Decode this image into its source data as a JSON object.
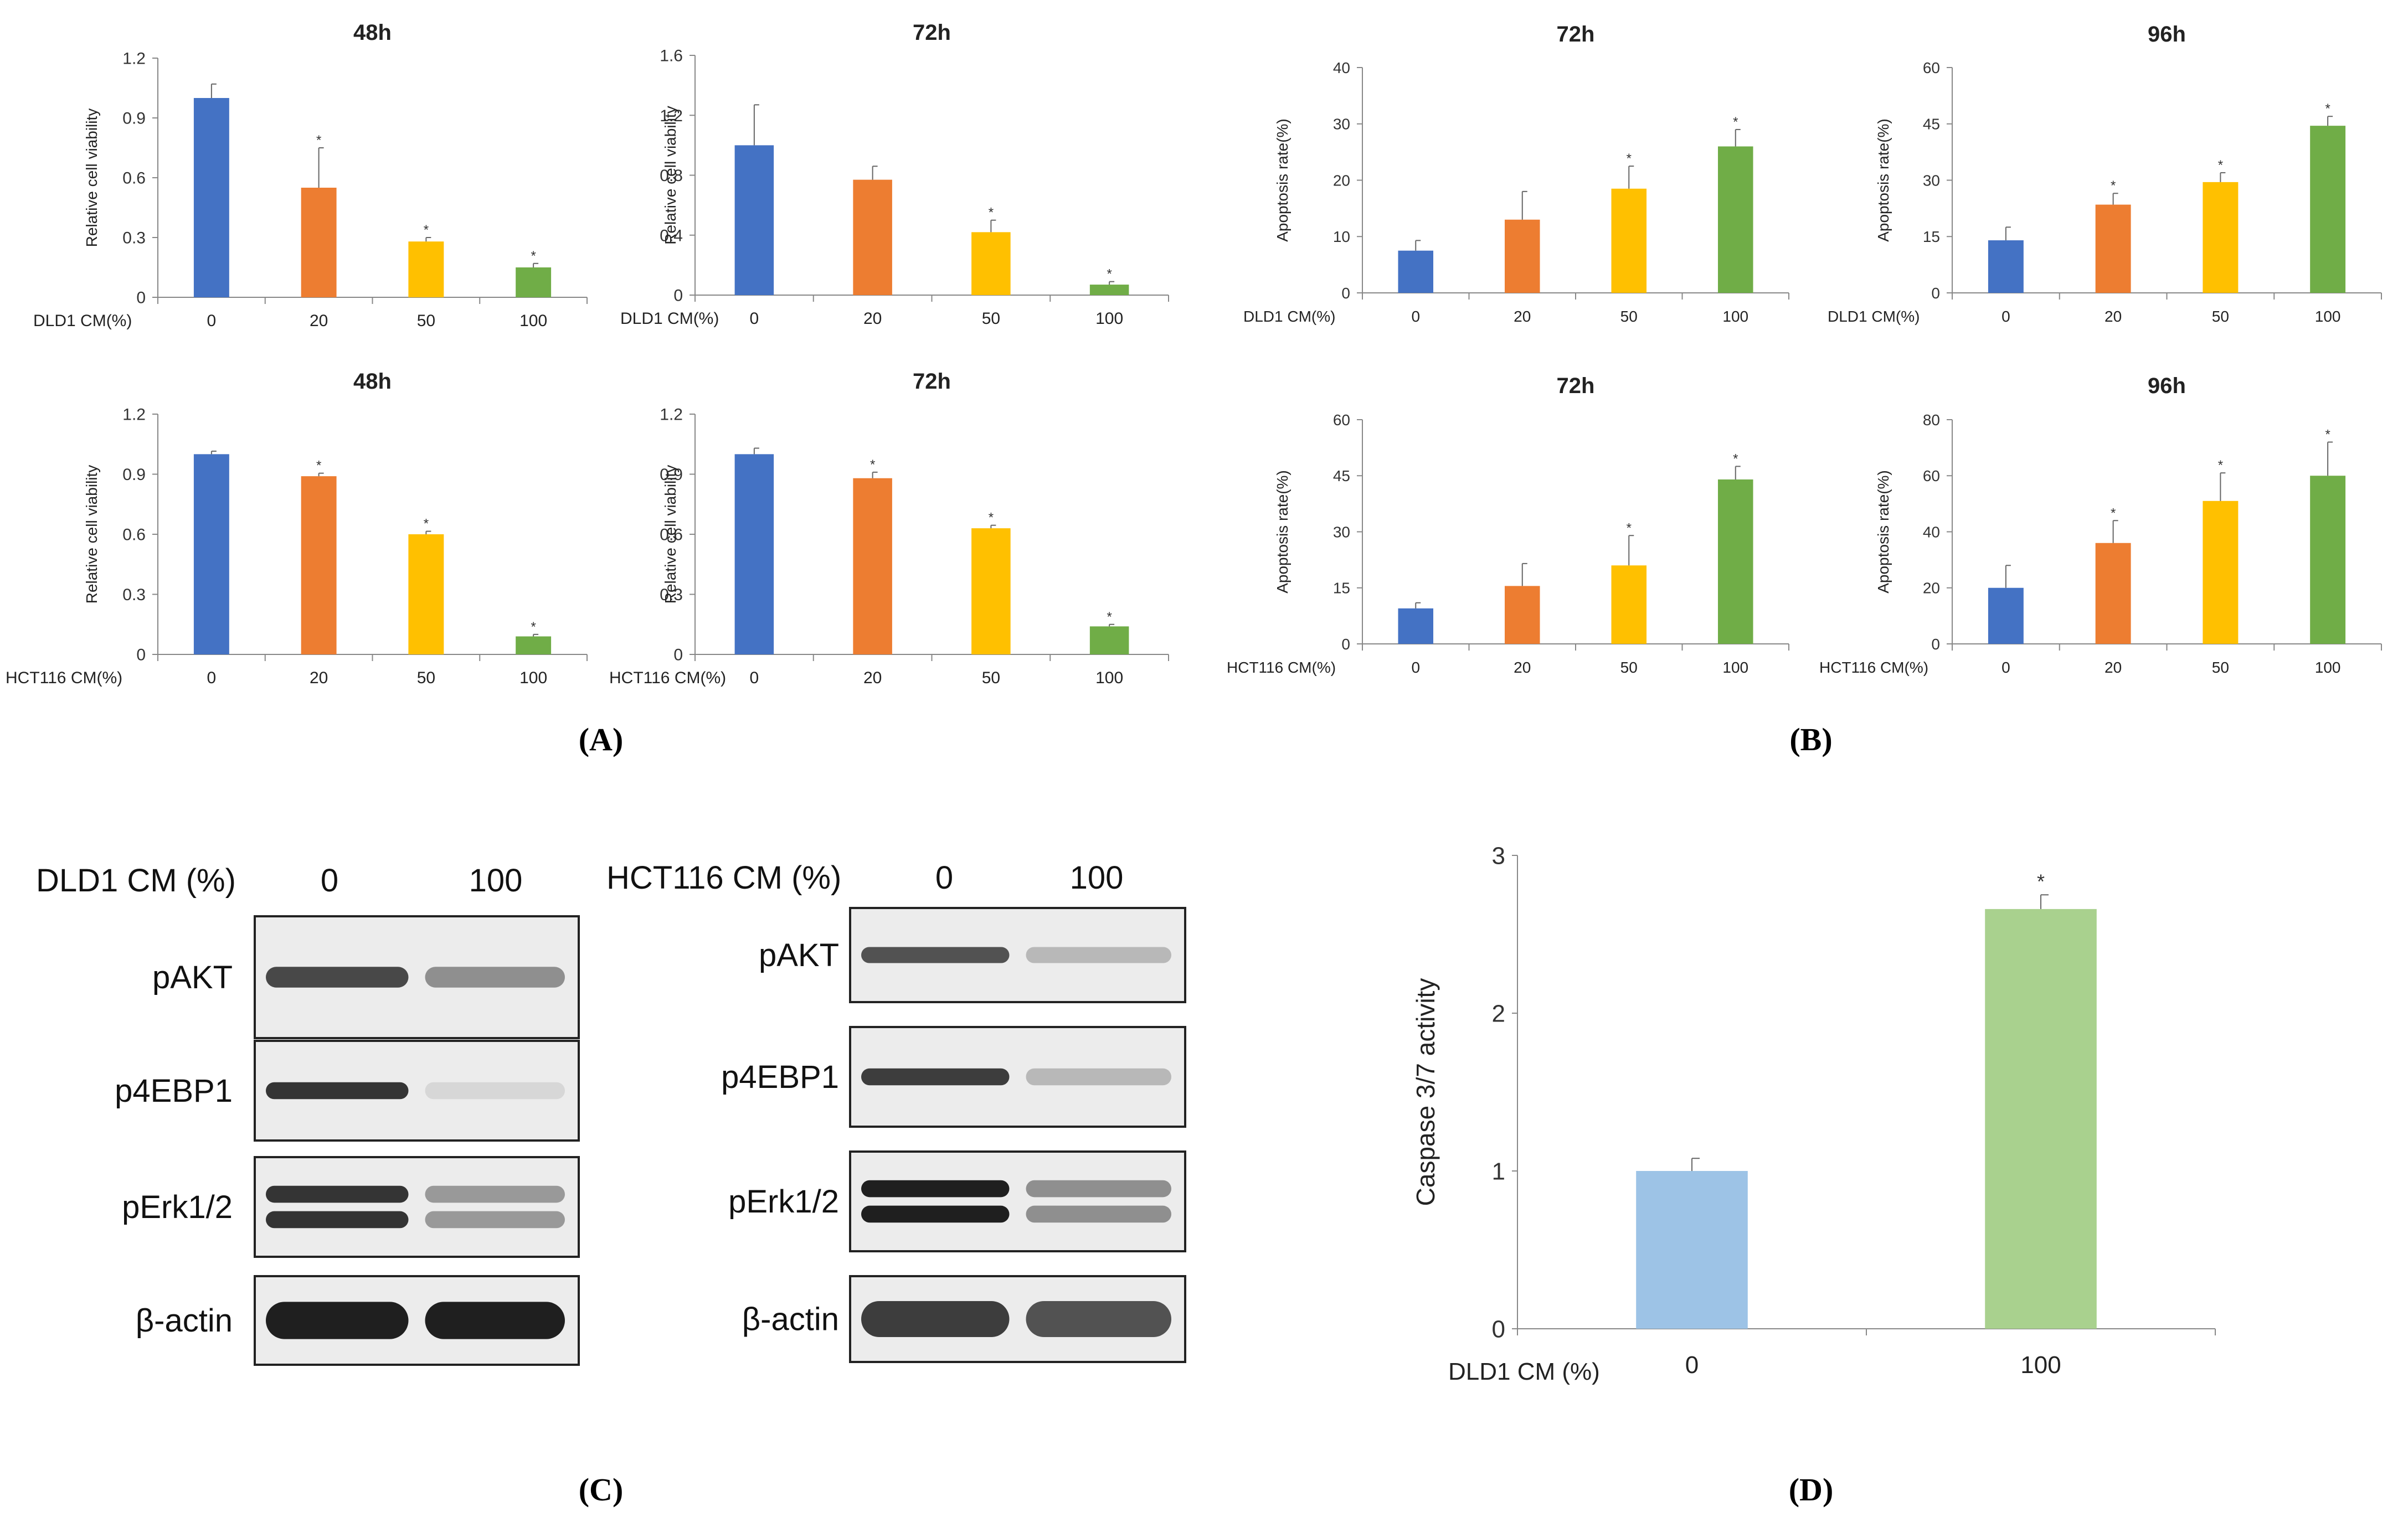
{
  "colors": {
    "blue": "#4472C4",
    "orange": "#ED7D31",
    "yellow": "#FFC000",
    "green": "#70AD47",
    "light_blue": "#9DC3E6",
    "light_green": "#A9D18E",
    "axis": "#888888",
    "text": "#000000"
  },
  "panel_labels": {
    "A": "A",
    "B": "B",
    "C": "C",
    "D": "D"
  },
  "chart_data": [
    {
      "id": "A1",
      "type": "bar",
      "title": "48h",
      "xlabel": "DLD1 CM(%)",
      "ylabel": "Relative cell viability",
      "categories": [
        "0",
        "20",
        "50",
        "100"
      ],
      "values": [
        1.0,
        0.55,
        0.28,
        0.15
      ],
      "errors": [
        0.07,
        0.2,
        0.02,
        0.02
      ],
      "significance": [
        "",
        "*",
        "*",
        "*"
      ],
      "ylim": [
        0,
        1.2
      ],
      "yticks": [
        "0",
        "0.3",
        "0.6",
        "0.9",
        "1.2"
      ],
      "colors": [
        "#4472C4",
        "#ED7D31",
        "#FFC000",
        "#70AD47"
      ]
    },
    {
      "id": "A2",
      "type": "bar",
      "title": "72h",
      "xlabel": "DLD1 CM(%)",
      "ylabel": "Relative cell viability",
      "categories": [
        "0",
        "20",
        "50",
        "100"
      ],
      "values": [
        1.0,
        0.77,
        0.42,
        0.07
      ],
      "errors": [
        0.27,
        0.09,
        0.08,
        0.02
      ],
      "significance": [
        "",
        "",
        "*",
        "*"
      ],
      "ylim": [
        0,
        1.6
      ],
      "yticks": [
        "0",
        "0.4",
        "0.8",
        "1.2",
        "1.6"
      ],
      "colors": [
        "#4472C4",
        "#ED7D31",
        "#FFC000",
        "#70AD47"
      ]
    },
    {
      "id": "A3",
      "type": "bar",
      "title": "48h",
      "xlabel": "HCT116 CM(%)",
      "ylabel": "Relative cell viability",
      "categories": [
        "0",
        "20",
        "50",
        "100"
      ],
      "values": [
        1.0,
        0.89,
        0.6,
        0.09
      ],
      "errors": [
        0.015,
        0.015,
        0.015,
        0.01
      ],
      "significance": [
        "",
        "*",
        "*",
        "*"
      ],
      "ylim": [
        0,
        1.2
      ],
      "yticks": [
        "0",
        "0.3",
        "0.6",
        "0.9",
        "1.2"
      ],
      "colors": [
        "#4472C4",
        "#ED7D31",
        "#FFC000",
        "#70AD47"
      ]
    },
    {
      "id": "A4",
      "type": "bar",
      "title": "72h",
      "xlabel": "HCT116 CM(%)",
      "ylabel": "Relative cell viability",
      "categories": [
        "0",
        "20",
        "50",
        "100"
      ],
      "values": [
        1.0,
        0.88,
        0.63,
        0.14
      ],
      "errors": [
        0.03,
        0.03,
        0.015,
        0.01
      ],
      "significance": [
        "",
        "*",
        "*",
        "*"
      ],
      "ylim": [
        0,
        1.2
      ],
      "yticks": [
        "0",
        "0.3",
        "0.6",
        "0.9",
        "1.2"
      ],
      "colors": [
        "#4472C4",
        "#ED7D31",
        "#FFC000",
        "#70AD47"
      ]
    },
    {
      "id": "B1",
      "type": "bar",
      "title": "72h",
      "xlabel": "DLD1 CM(%)",
      "ylabel": "Apoptosis rate(%)",
      "categories": [
        "0",
        "20",
        "50",
        "100"
      ],
      "values": [
        7.5,
        13,
        18.5,
        26
      ],
      "errors": [
        1.8,
        5,
        4,
        3
      ],
      "significance": [
        "",
        "",
        "*",
        "*"
      ],
      "ylim": [
        0,
        40
      ],
      "yticks": [
        "0",
        "10",
        "20",
        "30",
        "40"
      ],
      "colors": [
        "#4472C4",
        "#ED7D31",
        "#FFC000",
        "#70AD47"
      ]
    },
    {
      "id": "B2",
      "type": "bar",
      "title": "96h",
      "xlabel": "DLD1 CM(%)",
      "ylabel": "Apoptosis rate(%)",
      "categories": [
        "0",
        "20",
        "50",
        "100"
      ],
      "values": [
        14,
        23.5,
        29.5,
        44.5
      ],
      "errors": [
        3.5,
        3,
        2.5,
        2.5
      ],
      "significance": [
        "",
        "*",
        "*",
        "*"
      ],
      "ylim": [
        0,
        60
      ],
      "yticks": [
        "0",
        "15",
        "30",
        "45",
        "60"
      ],
      "colors": [
        "#4472C4",
        "#ED7D31",
        "#FFC000",
        "#70AD47"
      ]
    },
    {
      "id": "B3",
      "type": "bar",
      "title": "72h",
      "xlabel": "HCT116 CM(%)",
      "ylabel": "Apoptosis rate(%)",
      "categories": [
        "0",
        "20",
        "50",
        "100"
      ],
      "values": [
        9.5,
        15.5,
        21,
        44
      ],
      "errors": [
        1.5,
        6,
        8,
        3.5
      ],
      "significance": [
        "",
        "",
        "*",
        "*"
      ],
      "ylim": [
        0,
        60
      ],
      "yticks": [
        "0",
        "15",
        "30",
        "45",
        "60"
      ],
      "colors": [
        "#4472C4",
        "#ED7D31",
        "#FFC000",
        "#70AD47"
      ]
    },
    {
      "id": "B4",
      "type": "bar",
      "title": "96h",
      "xlabel": "HCT116 CM(%)",
      "ylabel": "Apoptosis rate(%)",
      "categories": [
        "0",
        "20",
        "50",
        "100"
      ],
      "values": [
        20,
        36,
        51,
        60
      ],
      "errors": [
        8,
        8,
        10,
        12
      ],
      "significance": [
        "",
        "*",
        "*",
        "*"
      ],
      "ylim": [
        0,
        80
      ],
      "yticks": [
        "0",
        "20",
        "40",
        "60",
        "80"
      ],
      "colors": [
        "#4472C4",
        "#ED7D31",
        "#FFC000",
        "#70AD47"
      ]
    },
    {
      "id": "D",
      "type": "bar",
      "title": "",
      "xlabel": "DLD1 CM (%)",
      "ylabel": "Caspase 3/7 activity",
      "categories": [
        "0",
        "100"
      ],
      "values": [
        1.0,
        2.66
      ],
      "errors": [
        0.08,
        0.09
      ],
      "significance": [
        "",
        "*"
      ],
      "ylim": [
        0,
        3
      ],
      "yticks": [
        "0",
        "1",
        "2",
        "3"
      ],
      "colors": [
        "#9DC3E6",
        "#A9D18E"
      ]
    }
  ],
  "western_blots": [
    {
      "id": "C1",
      "header_label": "DLD1 CM (%)",
      "lanes": [
        "0",
        "100"
      ],
      "rows": [
        {
          "label": "pAKT",
          "intensity": [
            0.8,
            0.45
          ],
          "bands": 1
        },
        {
          "label": "p4EBP1",
          "intensity": [
            0.9,
            0.1
          ],
          "bands": 1
        },
        {
          "label": "pErk1/2",
          "intensity": [
            0.9,
            0.4
          ],
          "bands": 2
        },
        {
          "label": "β-actin",
          "intensity": [
            1.0,
            1.0
          ],
          "bands": 1
        }
      ]
    },
    {
      "id": "C2",
      "header_label": "HCT116 CM (%)",
      "lanes": [
        "0",
        "100"
      ],
      "rows": [
        {
          "label": "pAKT",
          "intensity": [
            0.75,
            0.25
          ],
          "bands": 1
        },
        {
          "label": "p4EBP1",
          "intensity": [
            0.85,
            0.25
          ],
          "bands": 1
        },
        {
          "label": "pErk1/2",
          "intensity": [
            1.0,
            0.45
          ],
          "bands": 2
        },
        {
          "label": "β-actin",
          "intensity": [
            0.85,
            0.75
          ],
          "bands": 1
        }
      ]
    }
  ]
}
